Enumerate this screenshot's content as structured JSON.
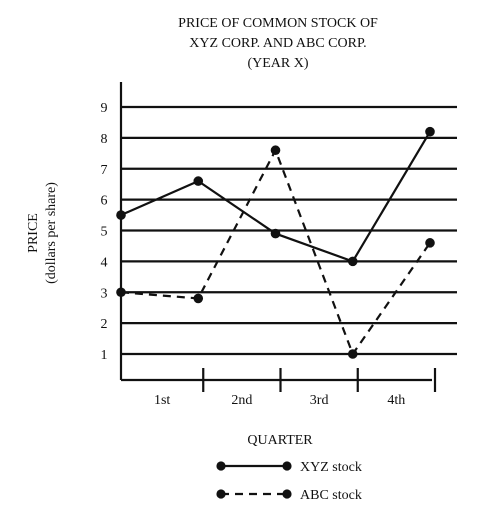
{
  "chart_data": {
    "type": "line",
    "title_lines": [
      "PRICE OF COMMON STOCK OF",
      "XYZ CORP. AND ABC CORP.",
      "(YEAR X)"
    ],
    "ylabel": "PRICE",
    "ylabel_sub": "(dollars per share)",
    "xlabel": "QUARTER",
    "categories": [
      "1st",
      "2nd",
      "3rd",
      "4th"
    ],
    "yticks": [
      "1",
      "2",
      "3",
      "4",
      "5",
      "6",
      "7",
      "8",
      "9"
    ],
    "ylim": [
      0,
      9
    ],
    "grid": true,
    "legend_position": "bottom",
    "series": [
      {
        "name": "XYZ stock",
        "style": "solid",
        "x": [
          0,
          1,
          2,
          3,
          4
        ],
        "values": [
          5.5,
          6.6,
          4.9,
          4.0,
          8.2
        ]
      },
      {
        "name": "ABC stock",
        "style": "dashed",
        "x": [
          0,
          1,
          2,
          3,
          4
        ],
        "values": [
          3.0,
          2.8,
          7.6,
          1.0,
          4.6
        ]
      }
    ]
  }
}
